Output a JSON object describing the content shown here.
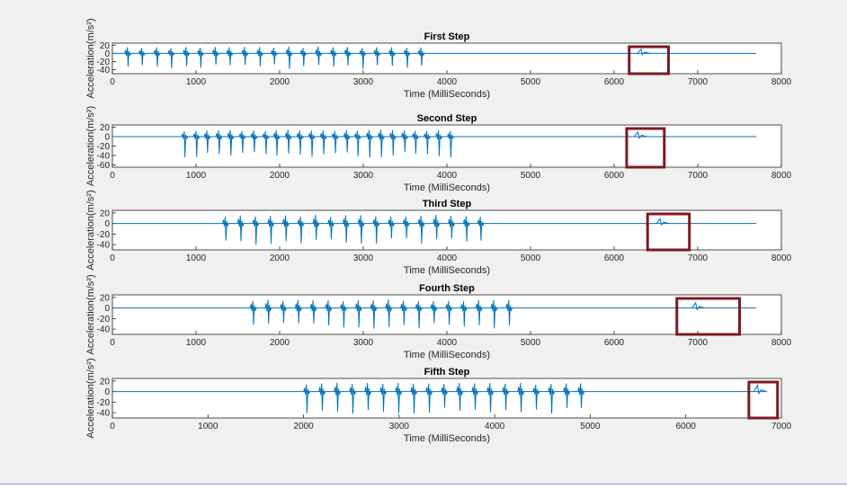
{
  "chart_data": [
    {
      "type": "line",
      "title": "First Step",
      "xlabel": "Time (MilliSeconds)",
      "ylabel": "Acceleration(m/s²)",
      "xlim": [
        0,
        8000
      ],
      "ylim": [
        -50,
        25
      ],
      "xticks": [
        0,
        1000,
        2000,
        3000,
        4000,
        5000,
        6000,
        7000,
        8000
      ],
      "yticks": [
        20,
        0,
        -20,
        -40
      ],
      "signal_end_ms": 7700,
      "series": [
        {
          "color": "#0072bd",
          "spikes_ms": [
            180,
            350,
            530,
            700,
            880,
            1050,
            1230,
            1400,
            1580,
            1760,
            1930,
            2110,
            2280,
            2460,
            2640,
            2810,
            2990,
            3160,
            3340,
            3520,
            3690
          ],
          "spike_up": 17,
          "spike_down": -38,
          "highlight": {
            "from": 6180,
            "to": 6650,
            "peak": 10
          }
        }
      ]
    },
    {
      "type": "line",
      "title": "Second Step",
      "xlabel": "Time (MilliSeconds)",
      "ylabel": "Acceleration(m/s²)",
      "xlim": [
        0,
        8000
      ],
      "ylim": [
        -65,
        25
      ],
      "xticks": [
        0,
        1000,
        2000,
        3000,
        4000,
        5000,
        6000,
        7000,
        8000
      ],
      "yticks": [
        20,
        0,
        -20,
        -40,
        -60
      ],
      "signal_end_ms": 7700,
      "series": [
        {
          "color": "#0072bd",
          "spikes_ms": [
            860,
            1000,
            1130,
            1270,
            1410,
            1550,
            1690,
            1830,
            1960,
            2100,
            2240,
            2380,
            2520,
            2660,
            2800,
            2930,
            3070,
            3210,
            3350,
            3490,
            3620,
            3760,
            3900,
            4040
          ],
          "spike_up": 15,
          "spike_down": -45,
          "highlight": {
            "from": 6150,
            "to": 6600,
            "peak": 10
          }
        }
      ]
    },
    {
      "type": "line",
      "title": "Third Step",
      "xlabel": "Time (MilliSeconds)",
      "ylabel": "Acceleration(m/s²)",
      "xlim": [
        0,
        8000
      ],
      "ylim": [
        -50,
        25
      ],
      "xticks": [
        0,
        1000,
        2000,
        3000,
        4000,
        5000,
        6000,
        7000,
        8000
      ],
      "yticks": [
        20,
        0,
        -20,
        -40
      ],
      "signal_end_ms": 7700,
      "series": [
        {
          "color": "#0072bd",
          "spikes_ms": [
            1350,
            1530,
            1710,
            1890,
            2070,
            2250,
            2430,
            2610,
            2790,
            2970,
            3150,
            3330,
            3510,
            3690,
            3870,
            4050,
            4230,
            4400
          ],
          "spike_up": 17,
          "spike_down": -40,
          "highlight": {
            "from": 6400,
            "to": 6900,
            "peak": 9
          }
        }
      ]
    },
    {
      "type": "line",
      "title": "Fourth Step",
      "xlabel": "Time (MilliSeconds)",
      "ylabel": "Acceleration(m/s²)",
      "xlim": [
        0,
        8000
      ],
      "ylim": [
        -50,
        25
      ],
      "xticks": [
        0,
        1000,
        2000,
        3000,
        4000,
        5000,
        6000,
        7000,
        8000
      ],
      "yticks": [
        20,
        0,
        -20,
        -40
      ],
      "signal_end_ms": 7700,
      "series": [
        {
          "color": "#0072bd",
          "spikes_ms": [
            1680,
            1860,
            2040,
            2220,
            2400,
            2580,
            2760,
            2940,
            3120,
            3300,
            3480,
            3660,
            3840,
            4020,
            4200,
            4380,
            4560,
            4740
          ],
          "spike_up": 17,
          "spike_down": -40,
          "highlight": {
            "from": 6750,
            "to": 7500,
            "peak": 10
          }
        }
      ]
    },
    {
      "type": "line",
      "title": "Fifth Step",
      "xlabel": "Time (MilliSeconds)",
      "ylabel": "Acceleration(m/s²)",
      "xlim": [
        0,
        7000
      ],
      "ylim": [
        -50,
        25
      ],
      "xticks": [
        0,
        1000,
        2000,
        3000,
        4000,
        5000,
        6000,
        7000
      ],
      "yticks": [
        20,
        0,
        -20,
        -40
      ],
      "signal_end_ms": 6850,
      "series": [
        {
          "color": "#0072bd",
          "spikes_ms": [
            2030,
            2190,
            2350,
            2510,
            2670,
            2830,
            2990,
            3150,
            3310,
            3470,
            3630,
            3790,
            3950,
            4110,
            4270,
            4430,
            4590,
            4750,
            4900
          ],
          "spike_up": 17,
          "spike_down": -42,
          "highlight": {
            "from": 6660,
            "to": 6960,
            "peak": 12
          }
        }
      ]
    }
  ],
  "colors": {
    "axes_bg": "#ffffff",
    "figure_bg": "#f0f0f0",
    "line": "#0072bd",
    "highlight_box": "#7b1a24"
  }
}
